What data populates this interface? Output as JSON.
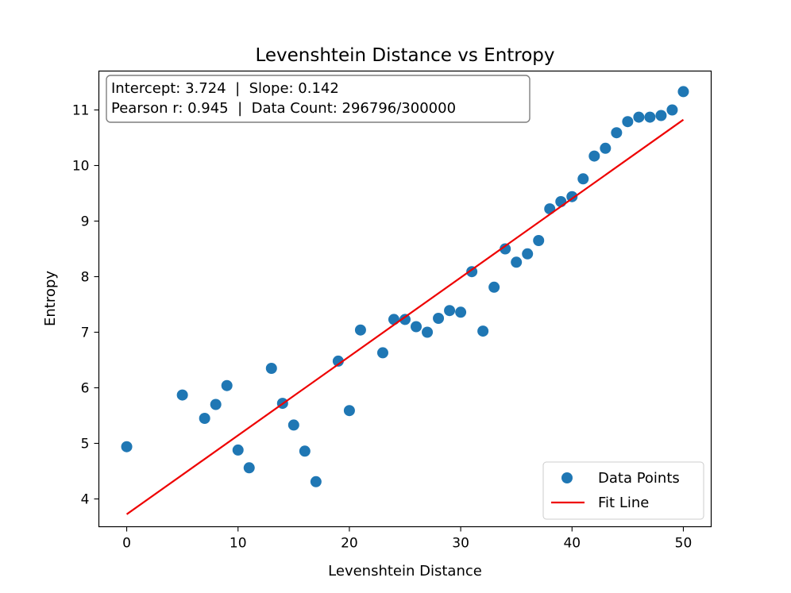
{
  "chart_data": {
    "type": "scatter",
    "title": "Levenshtein Distance vs Entropy",
    "xlabel": "Levenshtein Distance",
    "ylabel": "Entropy",
    "xlim": [
      -2.5,
      52.5
    ],
    "ylim": [
      3.5,
      11.7
    ],
    "xticks": [
      0,
      10,
      20,
      30,
      40,
      50
    ],
    "yticks": [
      4,
      5,
      6,
      7,
      8,
      9,
      10,
      11
    ],
    "grid": false,
    "info_box": {
      "line1": "Intercept: 3.724  |  Slope: 0.142",
      "line2": "Pearson r: 0.945  |  Data Count: 296796/300000"
    },
    "legend": {
      "placement": "bottom-right",
      "entries": [
        "Data Points",
        "Fit Line"
      ]
    },
    "series": [
      {
        "name": "Data Points",
        "kind": "scatter",
        "color": "#1f77b4",
        "points": [
          [
            0,
            4.94
          ],
          [
            5,
            5.87
          ],
          [
            7,
            5.45
          ],
          [
            8,
            5.7
          ],
          [
            9,
            6.04
          ],
          [
            10,
            4.88
          ],
          [
            11,
            4.56
          ],
          [
            13,
            6.35
          ],
          [
            14,
            5.72
          ],
          [
            15,
            5.33
          ],
          [
            16,
            4.86
          ],
          [
            17,
            4.31
          ],
          [
            19,
            6.48
          ],
          [
            20,
            5.59
          ],
          [
            21,
            7.04
          ],
          [
            23,
            6.63
          ],
          [
            24,
            7.23
          ],
          [
            25,
            7.23
          ],
          [
            26,
            7.1
          ],
          [
            27,
            7.0
          ],
          [
            28,
            7.25
          ],
          [
            29,
            7.39
          ],
          [
            30,
            7.36
          ],
          [
            31,
            8.09
          ],
          [
            32,
            7.02
          ],
          [
            33,
            7.81
          ],
          [
            34,
            8.5
          ],
          [
            35,
            8.26
          ],
          [
            36,
            8.41
          ],
          [
            37,
            8.65
          ],
          [
            38,
            9.22
          ],
          [
            39,
            9.35
          ],
          [
            40,
            9.44
          ],
          [
            41,
            9.76
          ],
          [
            42,
            10.17
          ],
          [
            43,
            10.31
          ],
          [
            44,
            10.59
          ],
          [
            45,
            10.79
          ],
          [
            46,
            10.87
          ],
          [
            47,
            10.87
          ],
          [
            48,
            10.9
          ],
          [
            49,
            11.0
          ],
          [
            50,
            11.33
          ]
        ]
      },
      {
        "name": "Fit Line",
        "kind": "line",
        "color": "#ee0000",
        "intercept": 3.724,
        "slope": 0.142,
        "x_range": [
          0,
          50
        ]
      }
    ]
  }
}
